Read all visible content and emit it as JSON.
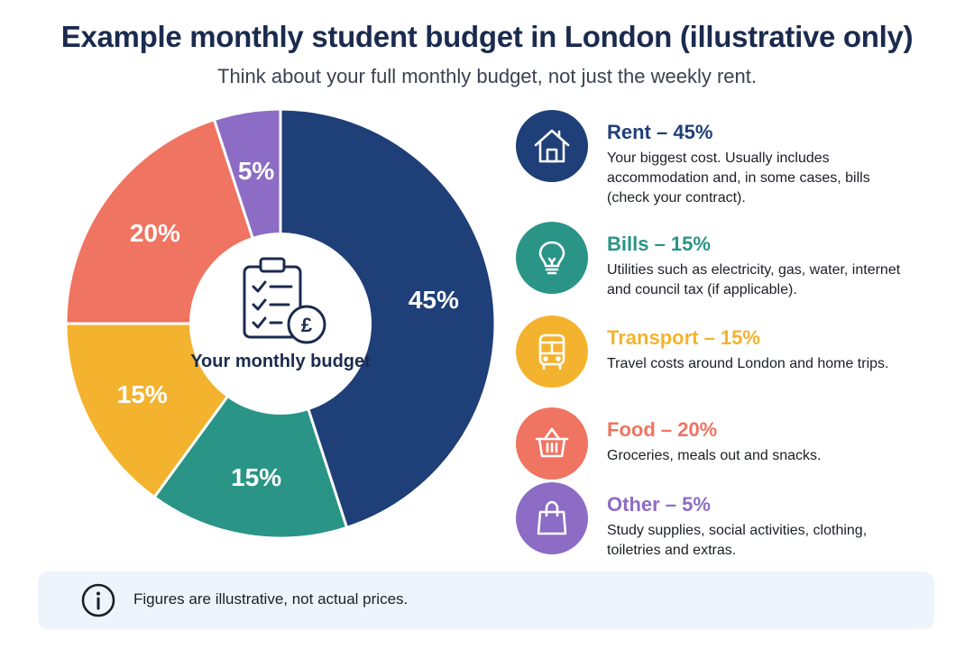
{
  "title": "Example monthly student budget in London (illustrative only)",
  "subtitle": "Think about your full monthly budget, not just the weekly rent.",
  "center_label": "Your monthly budget",
  "center_icon": "clipboard-pound-icon",
  "chart_data": {
    "type": "pie",
    "title": "Example monthly student budget in London (illustrative only)",
    "subtitle": "Think about your full monthly budget, not just the weekly rent.",
    "center_label": "Your monthly budget",
    "slices": [
      {
        "label": "Rent",
        "value": 45,
        "data_label": "45%",
        "color": "#1f3f78"
      },
      {
        "label": "Bills",
        "value": 15,
        "data_label": "15%",
        "color": "#2a9487"
      },
      {
        "label": "Transport",
        "value": 15,
        "data_label": "15%",
        "color": "#f4b32e"
      },
      {
        "label": "Food",
        "value": 20,
        "data_label": "20%",
        "color": "#ef7461"
      },
      {
        "label": "Other",
        "value": 5,
        "data_label": "5%",
        "color": "#8c6cc4"
      }
    ]
  },
  "legend": [
    {
      "heading": "Rent – 45%",
      "description": "Your biggest cost. Usually includes accommodation and, in some cases, bills (check your contract).",
      "color": "#1f3f78",
      "icon": "house-icon"
    },
    {
      "heading": "Bills – 15%",
      "description": "Utilities such as electricity, gas, water, internet and council tax (if applicable).",
      "color": "#2a9487",
      "icon": "lightbulb-icon"
    },
    {
      "heading": "Transport – 15%",
      "description": "Travel costs around London and home trips.",
      "color": "#f4b32e",
      "icon": "bus-icon"
    },
    {
      "heading": "Food – 20%",
      "description": "Groceries, meals out and snacks.",
      "color": "#ef7461",
      "icon": "basket-icon"
    },
    {
      "heading": "Other – 5%",
      "description": "Study supplies, social activities, clothing, toiletries and extras.",
      "color": "#8c6cc4",
      "icon": "shopping-bag-icon"
    }
  ],
  "note": {
    "icon": "info-icon",
    "text": "Figures are illustrative, not actual prices."
  }
}
